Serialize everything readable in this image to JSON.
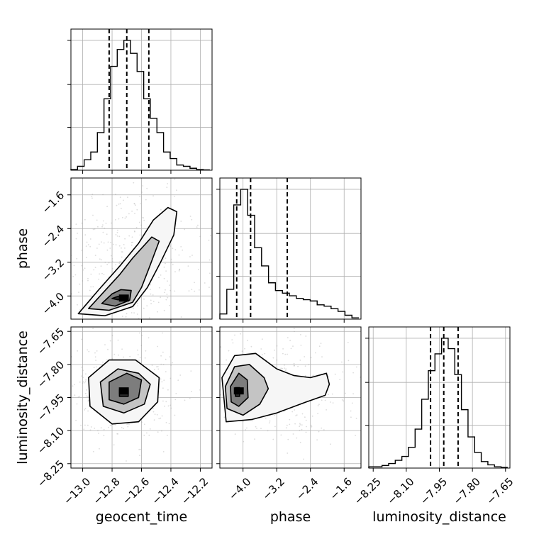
{
  "chart_data": {
    "type": "corner",
    "parameters": [
      "geocent_time",
      "phase",
      "luminosity_distance"
    ],
    "ranges": {
      "geocent_time": [
        -13.08,
        -12.12
      ],
      "phase": [
        -4.55,
        -1.2
      ],
      "luminosity_distance": [
        -8.27,
        -7.63
      ]
    },
    "ticks": {
      "geocent_time": [
        -13.0,
        -12.8,
        -12.6,
        -12.4,
        -12.2
      ],
      "phase": [
        -4.0,
        -3.2,
        -2.4,
        -1.6
      ],
      "luminosity_distance": [
        -8.25,
        -8.1,
        -7.95,
        -7.8,
        -7.65
      ]
    },
    "tick_labels": {
      "geocent_time": [
        "−13.0",
        "−12.8",
        "−12.6",
        "−12.4",
        "−12.2"
      ],
      "phase": [
        "−4.0",
        "−3.2",
        "−2.4",
        "−1.6"
      ],
      "luminosity_distance": [
        "−8.25",
        "−8.10",
        "−7.95",
        "−7.80",
        "−7.65"
      ]
    },
    "quantiles": {
      "geocent_time": [
        -12.82,
        -12.7,
        -12.55
      ],
      "phase": [
        -4.15,
        -3.82,
        -2.95
      ],
      "luminosity_distance": [
        -7.99,
        -7.93,
        -7.865
      ]
    },
    "histograms": {
      "geocent_time": {
        "bin_edges": [
          -13.08,
          -13.035,
          -12.99,
          -12.945,
          -12.9,
          -12.855,
          -12.81,
          -12.765,
          -12.72,
          -12.675,
          -12.63,
          -12.585,
          -12.54,
          -12.495,
          -12.45,
          -12.405,
          -12.36,
          -12.315,
          -12.27,
          -12.225,
          -12.18,
          -12.135
        ],
        "counts": [
          0.005,
          0.03,
          0.08,
          0.14,
          0.29,
          0.55,
          0.8,
          0.93,
          1.0,
          0.9,
          0.76,
          0.55,
          0.4,
          0.29,
          0.14,
          0.09,
          0.04,
          0.03,
          0.015,
          0.005,
          0.002
        ]
      },
      "phase": {
        "bin_edges": [
          -4.55,
          -4.385,
          -4.22,
          -4.055,
          -3.89,
          -3.725,
          -3.56,
          -3.395,
          -3.23,
          -3.065,
          -2.9,
          -2.735,
          -2.57,
          -2.405,
          -2.24,
          -2.075,
          -1.91,
          -1.745,
          -1.58,
          -1.415,
          -1.25
        ],
        "counts": [
          0.04,
          0.23,
          0.88,
          1.0,
          0.8,
          0.55,
          0.41,
          0.28,
          0.22,
          0.2,
          0.18,
          0.16,
          0.15,
          0.14,
          0.11,
          0.1,
          0.08,
          0.06,
          0.03,
          0.01
        ]
      },
      "luminosity_distance": {
        "bin_edges": [
          -8.27,
          -8.24,
          -8.21,
          -8.18,
          -8.15,
          -8.12,
          -8.09,
          -8.06,
          -8.03,
          -8.0,
          -7.97,
          -7.94,
          -7.91,
          -7.88,
          -7.85,
          -7.82,
          -7.79,
          -7.76,
          -7.73,
          -7.7,
          -7.67,
          -7.64
        ],
        "counts": [
          0.01,
          0.01,
          0.02,
          0.035,
          0.06,
          0.09,
          0.16,
          0.3,
          0.53,
          0.75,
          0.88,
          1.0,
          0.92,
          0.72,
          0.45,
          0.24,
          0.12,
          0.05,
          0.025,
          0.01,
          0.005
        ]
      }
    },
    "pairs": [
      {
        "x": "geocent_time",
        "y": "phase",
        "density_center": [
          -12.72,
          -4.05
        ],
        "contours": [
          [
            [
              -12.8,
              -4.06
            ],
            [
              -12.76,
              -4.09
            ],
            [
              -12.72,
              -4.05
            ],
            [
              -12.76,
              -4.01
            ],
            [
              -12.8,
              -4.06
            ]
          ],
          [
            [
              -12.87,
              -4.18
            ],
            [
              -12.78,
              -4.24
            ],
            [
              -12.68,
              -4.1
            ],
            [
              -12.67,
              -3.87
            ],
            [
              -12.74,
              -3.85
            ],
            [
              -12.8,
              -3.95
            ],
            [
              -12.87,
              -4.18
            ]
          ],
          [
            [
              -12.96,
              -4.3
            ],
            [
              -12.82,
              -4.34
            ],
            [
              -12.66,
              -4.15
            ],
            [
              -12.6,
              -3.8
            ],
            [
              -12.55,
              -3.35
            ],
            [
              -12.48,
              -2.7
            ],
            [
              -12.53,
              -2.6
            ],
            [
              -12.66,
              -3.1
            ],
            [
              -12.75,
              -3.5
            ],
            [
              -12.85,
              -3.88
            ],
            [
              -12.96,
              -4.3
            ]
          ],
          [
            [
              -13.03,
              -4.42
            ],
            [
              -12.85,
              -4.47
            ],
            [
              -12.66,
              -4.25
            ],
            [
              -12.56,
              -3.8
            ],
            [
              -12.47,
              -3.2
            ],
            [
              -12.38,
              -2.55
            ],
            [
              -12.36,
              -2.0
            ],
            [
              -12.42,
              -1.9
            ],
            [
              -12.52,
              -2.2
            ],
            [
              -12.62,
              -2.75
            ],
            [
              -12.75,
              -3.3
            ],
            [
              -12.89,
              -3.85
            ],
            [
              -13.03,
              -4.42
            ]
          ]
        ]
      },
      {
        "x": "geocent_time",
        "y": "luminosity_distance",
        "density_center": [
          -12.72,
          -7.92
        ],
        "contours": [
          [
            [
              -12.75,
              -7.915
            ],
            [
              -12.69,
              -7.915
            ],
            [
              -12.69,
              -7.945
            ],
            [
              -12.75,
              -7.945
            ],
            [
              -12.75,
              -7.915
            ]
          ],
          [
            [
              -12.82,
              -7.88
            ],
            [
              -12.7,
              -7.84
            ],
            [
              -12.6,
              -7.87
            ],
            [
              -12.62,
              -7.95
            ],
            [
              -12.72,
              -7.98
            ],
            [
              -12.82,
              -7.96
            ],
            [
              -12.82,
              -7.88
            ]
          ],
          [
            [
              -12.88,
              -7.88
            ],
            [
              -12.76,
              -7.82
            ],
            [
              -12.62,
              -7.84
            ],
            [
              -12.54,
              -7.89
            ],
            [
              -12.58,
              -7.98
            ],
            [
              -12.72,
              -8.02
            ],
            [
              -12.86,
              -7.99
            ],
            [
              -12.88,
              -7.88
            ]
          ],
          [
            [
              -12.96,
              -7.86
            ],
            [
              -12.82,
              -7.78
            ],
            [
              -12.64,
              -7.78
            ],
            [
              -12.48,
              -7.86
            ],
            [
              -12.49,
              -7.97
            ],
            [
              -12.62,
              -8.06
            ],
            [
              -12.8,
              -8.07
            ],
            [
              -12.95,
              -7.99
            ],
            [
              -12.96,
              -7.86
            ]
          ]
        ]
      },
      {
        "x": "phase",
        "y": "luminosity_distance",
        "density_center": [
          -4.1,
          -7.92
        ],
        "contours": [
          [
            [
              -4.18,
              -7.905
            ],
            [
              -4.08,
              -7.905
            ],
            [
              -4.08,
              -7.945
            ],
            [
              -4.18,
              -7.945
            ],
            [
              -4.18,
              -7.905
            ]
          ],
          [
            [
              -4.3,
              -7.9
            ],
            [
              -4.1,
              -7.84
            ],
            [
              -3.9,
              -7.87
            ],
            [
              -3.88,
              -7.95
            ],
            [
              -4.1,
              -7.99
            ],
            [
              -4.28,
              -7.97
            ],
            [
              -4.3,
              -7.9
            ]
          ],
          [
            [
              -4.42,
              -7.9
            ],
            [
              -4.2,
              -7.81
            ],
            [
              -3.85,
              -7.8
            ],
            [
              -3.5,
              -7.86
            ],
            [
              -3.4,
              -7.91
            ],
            [
              -3.6,
              -7.98
            ],
            [
              -4.0,
              -8.03
            ],
            [
              -4.38,
              -8.0
            ],
            [
              -4.42,
              -7.9
            ]
          ],
          [
            [
              -4.5,
              -7.86
            ],
            [
              -4.2,
              -7.76
            ],
            [
              -3.7,
              -7.75
            ],
            [
              -3.2,
              -7.82
            ],
            [
              -2.8,
              -7.85
            ],
            [
              -2.4,
              -7.86
            ],
            [
              -2.02,
              -7.84
            ],
            [
              -1.95,
              -7.89
            ],
            [
              -2.05,
              -7.94
            ],
            [
              -2.5,
              -7.97
            ],
            [
              -3.2,
              -8.02
            ],
            [
              -3.8,
              -8.05
            ],
            [
              -4.4,
              -8.06
            ],
            [
              -4.5,
              -7.86
            ]
          ]
        ]
      }
    ],
    "title": "",
    "xlabel": "",
    "ylabel": "",
    "grid": true
  }
}
